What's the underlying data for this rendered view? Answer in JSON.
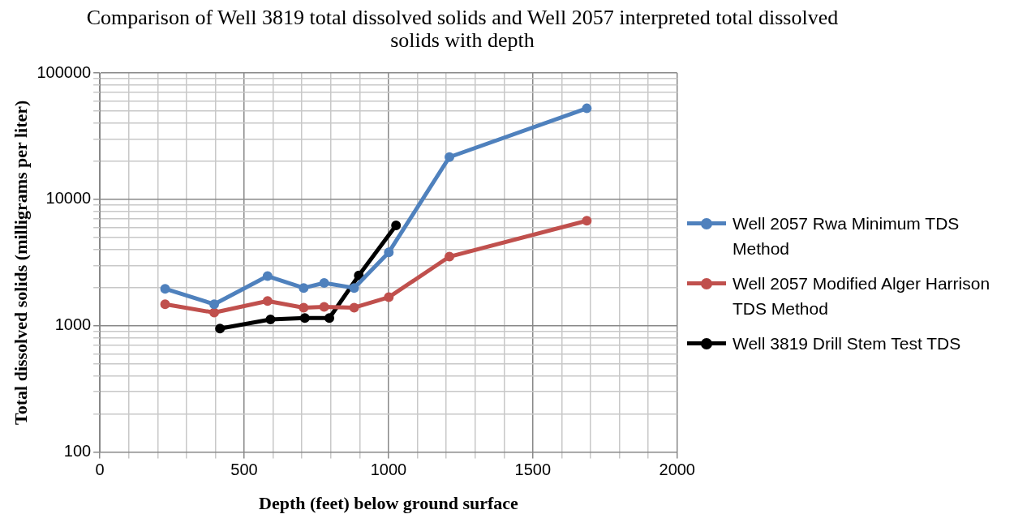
{
  "chart_data": {
    "type": "line",
    "title": "Comparison of Well 3819 total dissolved solids and Well 2057 interpreted total dissolved solids with depth",
    "xlabel": "Depth (feet) below ground surface",
    "ylabel": "Total dissolved solids (milligrams per liter)",
    "series": [
      {
        "name": "Well 2057 Rwa Minimum TDS Method",
        "color": "#4f81bd",
        "x": [
          226,
          396,
          581,
          706,
          777,
          881,
          1001,
          1211,
          1687
        ],
        "values": [
          1960,
          1480,
          2470,
          1990,
          2180,
          1990,
          3810,
          21600,
          52500
        ]
      },
      {
        "name": "Well 2057 Modified Alger Harrison TDS Method",
        "color": "#c0504d",
        "x": [
          226,
          396,
          581,
          706,
          777,
          881,
          1001,
          1211,
          1687
        ],
        "values": [
          1480,
          1270,
          1570,
          1390,
          1410,
          1390,
          1680,
          3520,
          6770
        ]
      },
      {
        "name": "Well 3819 Drill Stem Test TDS",
        "color": "#000000",
        "x": [
          416,
          591,
          710,
          795,
          897,
          1026
        ],
        "values": [
          950,
          1120,
          1150,
          1150,
          2500,
          6210
        ]
      }
    ],
    "xlim": [
      0,
      2000
    ],
    "xticks": [
      0,
      {
        "value": 100,
        "label": null
      },
      {
        "value": 200,
        "label": null
      },
      {
        "value": 300,
        "label": null
      },
      {
        "value": 400,
        "label": null
      },
      500,
      {
        "value": 600,
        "label": null
      },
      {
        "value": 700,
        "label": null
      },
      {
        "value": 800,
        "label": null
      },
      {
        "value": 900,
        "label": null
      },
      1000,
      {
        "value": 1100,
        "label": null
      },
      {
        "value": 1200,
        "label": null
      },
      {
        "value": 1300,
        "label": null
      },
      {
        "value": 1400,
        "label": null
      },
      1500,
      {
        "value": 1600,
        "label": null
      },
      {
        "value": 1700,
        "label": null
      },
      {
        "value": 1800,
        "label": null
      },
      {
        "value": 1900,
        "label": null
      },
      2000
    ],
    "ylim": [
      100,
      100000
    ],
    "yticks": [
      100,
      {
        "value": 200,
        "label": null
      },
      {
        "value": 300,
        "label": null
      },
      {
        "value": 400,
        "label": null
      },
      {
        "value": 500,
        "label": null
      },
      {
        "value": 600,
        "label": null
      },
      {
        "value": 700,
        "label": null
      },
      {
        "value": 800,
        "label": null
      },
      {
        "value": 900,
        "label": null
      },
      1000,
      {
        "value": 2000,
        "label": null
      },
      {
        "value": 3000,
        "label": null
      },
      {
        "value": 4000,
        "label": null
      },
      {
        "value": 5000,
        "label": null
      },
      {
        "value": 6000,
        "label": null
      },
      {
        "value": 7000,
        "label": null
      },
      {
        "value": 8000,
        "label": null
      },
      {
        "value": 9000,
        "label": null
      },
      10000,
      {
        "value": 20000,
        "label": null
      },
      {
        "value": 30000,
        "label": null
      },
      {
        "value": 40000,
        "label": null
      },
      {
        "value": 50000,
        "label": null
      },
      {
        "value": 60000,
        "label": null
      },
      {
        "value": 70000,
        "label": null
      },
      {
        "value": 80000,
        "label": null
      },
      {
        "value": 90000,
        "label": null
      },
      100000
    ],
    "log": "y",
    "grid": true,
    "legend": "right",
    "marker": "circle",
    "line_style": "solid"
  }
}
